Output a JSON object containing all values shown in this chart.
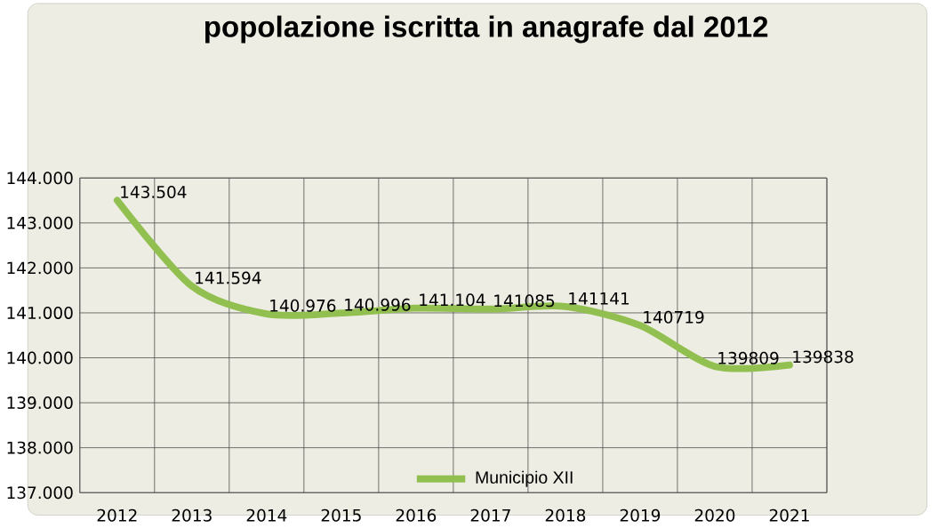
{
  "chart_data": {
    "type": "line",
    "title": "popolazione iscritta in anagrafe dal 2012",
    "categories": [
      "2012",
      "2013",
      "2014",
      "2015",
      "2016",
      "2017",
      "2018",
      "2019",
      "2020",
      "2021"
    ],
    "series": [
      {
        "name": "Municipio XII",
        "color": "#92c050",
        "values": [
          143504,
          141594,
          140976,
          140996,
          141104,
          141085,
          141141,
          140719,
          139809,
          139838
        ],
        "value_labels": [
          "143.504",
          "141.594",
          "140.976",
          "140.996",
          "141.104",
          "141085",
          "141141",
          "140719",
          "139809",
          "139838"
        ]
      }
    ],
    "ylim": [
      137000,
      144000
    ],
    "yticks": [
      {
        "value": 137000,
        "label": "137.000"
      },
      {
        "value": 138000,
        "label": "138.000"
      },
      {
        "value": 139000,
        "label": "139.000"
      },
      {
        "value": 140000,
        "label": "140.000"
      },
      {
        "value": 141000,
        "label": "141.000"
      },
      {
        "value": 142000,
        "label": "142.000"
      },
      {
        "value": 143000,
        "label": "143.000"
      },
      {
        "value": 144000,
        "label": "144.000"
      }
    ],
    "grid": true,
    "legend": "bottom",
    "marker": "none",
    "line_style": "solid"
  }
}
